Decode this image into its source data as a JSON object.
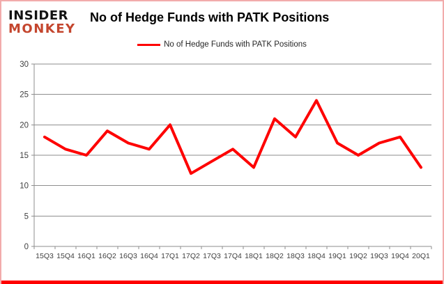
{
  "logo": {
    "line1": "INSIDER",
    "line2": "MONKEY"
  },
  "header": {
    "title": "No of Hedge Funds with PATK Positions"
  },
  "legend": {
    "label": "No of Hedge Funds with PATK Positions"
  },
  "colors": {
    "series_line": "#fe0000",
    "gridline": "#8e8e8e",
    "axis": "#8e8e8e",
    "tick_label": "#3f3f3f",
    "frame_border": "#f2abab",
    "bottom_bar": "#fe0000",
    "logo_black": "#131313",
    "logo_red": "#c4462e"
  },
  "chart_data": {
    "type": "line",
    "title": "No of Hedge Funds with PATK Positions",
    "categories": [
      "15Q3",
      "15Q4",
      "16Q1",
      "16Q2",
      "16Q3",
      "16Q4",
      "17Q1",
      "17Q2",
      "17Q3",
      "17Q4",
      "18Q1",
      "18Q2",
      "18Q3",
      "18Q4",
      "19Q1",
      "19Q2",
      "19Q3",
      "19Q4",
      "20Q1"
    ],
    "series": [
      {
        "name": "No of Hedge Funds with PATK Positions",
        "values": [
          18,
          16,
          15,
          19,
          17,
          16,
          20,
          12,
          14,
          16,
          13,
          21,
          18,
          24,
          17,
          15,
          17,
          18,
          13
        ],
        "color": "#fe0000"
      }
    ],
    "xlabel": "",
    "ylabel": "",
    "ylim": [
      0,
      30
    ],
    "yticks": [
      0,
      5,
      10,
      15,
      20,
      25,
      30
    ],
    "grid": true,
    "legend_position": "top-center"
  }
}
